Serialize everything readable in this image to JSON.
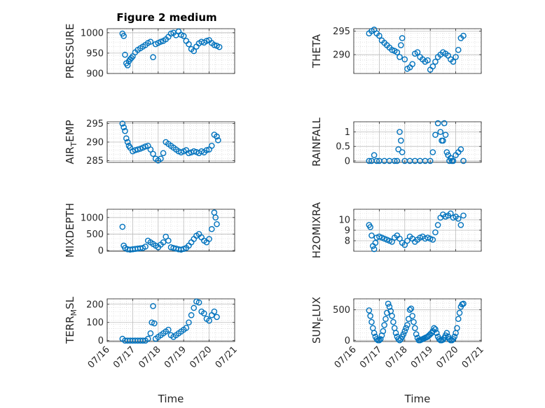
{
  "colors": {
    "marker": "#0072BD",
    "axis": "#262626",
    "grid": "#cfcfcf",
    "background": "#ffffff"
  },
  "chart_data": [
    {
      "type": "scatter",
      "title": "Figure 2 medium",
      "ylabel": "PRESSURE",
      "xlabel": "",
      "xticks": [
        "07/16",
        "07/17",
        "07/18",
        "07/19",
        "07/20",
        "07/21"
      ],
      "show_xticks": false,
      "ylim": [
        900,
        1010
      ],
      "yticks": [
        "900",
        "950",
        "1000"
      ],
      "ytick_values": [
        900,
        950,
        1000
      ],
      "grid": true,
      "x": [
        0.6,
        0.65,
        0.7,
        0.75,
        0.8,
        0.85,
        0.9,
        0.95,
        1.0,
        1.1,
        1.2,
        1.3,
        1.4,
        1.5,
        1.6,
        1.7,
        1.8,
        1.9,
        2.0,
        2.1,
        2.2,
        2.3,
        2.4,
        2.5,
        2.6,
        2.7,
        2.8,
        2.9,
        3.0,
        3.1,
        3.2,
        3.3,
        3.4,
        3.5,
        3.6,
        3.7,
        3.8,
        3.9,
        4.0,
        4.1,
        4.2,
        4.3,
        4.4
      ],
      "y": [
        998,
        992,
        946,
        925,
        920,
        930,
        935,
        938,
        942,
        952,
        958,
        962,
        966,
        970,
        975,
        978,
        940,
        972,
        975,
        978,
        980,
        984,
        990,
        998,
        1000,
        994,
        1003,
        995,
        992,
        980,
        972,
        960,
        955,
        966,
        974,
        978,
        976,
        980,
        982,
        975,
        970,
        968,
        965
      ]
    },
    {
      "type": "scatter",
      "ylabel": "THETA",
      "xlabel": "",
      "xticks": [
        "07/16",
        "07/17",
        "07/18",
        "07/19",
        "07/20",
        "07/21"
      ],
      "show_xticks": false,
      "ylim": [
        286,
        295.5
      ],
      "yticks": [
        "290",
        "295"
      ],
      "ytick_values": [
        290,
        295
      ],
      "grid": true,
      "x": [
        0.6,
        0.7,
        0.8,
        0.9,
        1.0,
        1.1,
        1.2,
        1.3,
        1.4,
        1.5,
        1.6,
        1.7,
        1.8,
        1.85,
        1.9,
        2.0,
        2.1,
        2.2,
        2.3,
        2.4,
        2.5,
        2.6,
        2.7,
        2.8,
        2.9,
        3.0,
        3.1,
        3.2,
        3.3,
        3.4,
        3.5,
        3.6,
        3.7,
        3.8,
        3.9,
        4.0,
        4.1,
        4.2,
        4.3
      ],
      "y": [
        294.5,
        295,
        295.3,
        294.5,
        294,
        293,
        292.5,
        292,
        291.5,
        291,
        290.8,
        290.5,
        289.5,
        292,
        293.5,
        289,
        287,
        287.3,
        288,
        290.2,
        290.5,
        289.5,
        289,
        288.5,
        288.8,
        286.8,
        287.5,
        288.5,
        289.5,
        290,
        290.5,
        290.2,
        289.8,
        289,
        288.5,
        289.5,
        291,
        293.5,
        294
      ]
    },
    {
      "type": "scatter",
      "ylabel": "AIR_TEMP",
      "xlabel": "",
      "xticks": [
        "07/16",
        "07/17",
        "07/18",
        "07/19",
        "07/20",
        "07/21"
      ],
      "show_xticks": false,
      "ylim": [
        284.5,
        295.5
      ],
      "yticks": [
        "285",
        "290",
        "295"
      ],
      "ytick_values": [
        285,
        290,
        295
      ],
      "grid": true,
      "x": [
        0.6,
        0.65,
        0.7,
        0.75,
        0.8,
        0.85,
        0.9,
        1.0,
        1.1,
        1.2,
        1.3,
        1.4,
        1.5,
        1.6,
        1.7,
        1.8,
        1.9,
        2.0,
        2.1,
        2.2,
        2.3,
        2.4,
        2.5,
        2.6,
        2.7,
        2.8,
        2.9,
        3.0,
        3.1,
        3.2,
        3.3,
        3.4,
        3.5,
        3.6,
        3.7,
        3.8,
        3.9,
        4.0,
        4.1,
        4.2,
        4.3,
        4.35
      ],
      "y": [
        295,
        294,
        293,
        291,
        290,
        289,
        288.5,
        287.5,
        287.8,
        288,
        288.2,
        288.5,
        288.8,
        289,
        288,
        286.8,
        285.5,
        285,
        285.5,
        287,
        290,
        289.5,
        289,
        288.5,
        288,
        287.5,
        287.2,
        287.5,
        287.8,
        287,
        287.2,
        287.5,
        287.3,
        287,
        287.5,
        287.2,
        287.8,
        288,
        289,
        292,
        291.5,
        290.5
      ]
    },
    {
      "type": "scatter",
      "ylabel": "RAINFALL",
      "xlabel": "",
      "xticks": [
        "07/16",
        "07/17",
        "07/18",
        "07/19",
        "07/20",
        "07/21"
      ],
      "show_xticks": false,
      "ylim": [
        -0.05,
        1.35
      ],
      "yticks": [
        "0",
        "0.5",
        "1"
      ],
      "ytick_values": [
        0,
        0.5,
        1
      ],
      "grid": true,
      "x": [
        0.6,
        0.7,
        0.8,
        0.9,
        1.0,
        1.2,
        1.4,
        1.6,
        1.7,
        1.75,
        1.8,
        1.85,
        1.9,
        2.0,
        2.2,
        2.4,
        2.6,
        2.8,
        3.0,
        3.1,
        3.2,
        3.3,
        3.4,
        3.45,
        3.5,
        3.55,
        3.6,
        3.65,
        3.7,
        3.75,
        3.8,
        3.85,
        3.9,
        4.0,
        4.1,
        4.2,
        4.3
      ],
      "y": [
        0,
        0,
        0.2,
        0,
        0,
        0,
        0,
        0,
        0,
        0.4,
        1.0,
        0.7,
        0.3,
        0,
        0,
        0,
        0,
        0,
        0,
        0.3,
        0.9,
        1.3,
        1.0,
        0.7,
        0.7,
        1.3,
        0.9,
        0.3,
        0.2,
        0,
        0.1,
        0,
        0,
        0.2,
        0.3,
        0.4,
        0
      ]
    },
    {
      "type": "scatter",
      "ylabel": "MIXDEPTH",
      "xlabel": "",
      "xticks": [
        "07/16",
        "07/17",
        "07/18",
        "07/19",
        "07/20",
        "07/21"
      ],
      "show_xticks": false,
      "ylim": [
        -20,
        1250
      ],
      "yticks": [
        "0",
        "500",
        "1000"
      ],
      "ytick_values": [
        0,
        500,
        1000
      ],
      "grid": true,
      "x": [
        0.6,
        0.65,
        0.7,
        0.8,
        0.9,
        1.0,
        1.1,
        1.2,
        1.3,
        1.4,
        1.5,
        1.6,
        1.7,
        1.8,
        1.9,
        2.0,
        2.1,
        2.2,
        2.3,
        2.4,
        2.5,
        2.6,
        2.7,
        2.8,
        2.9,
        3.0,
        3.1,
        3.2,
        3.3,
        3.4,
        3.5,
        3.6,
        3.7,
        3.8,
        3.9,
        4.0,
        4.1,
        4.2,
        4.25,
        4.3
      ],
      "y": [
        720,
        150,
        80,
        40,
        30,
        40,
        50,
        60,
        70,
        80,
        120,
        300,
        250,
        200,
        150,
        100,
        180,
        250,
        420,
        300,
        100,
        80,
        60,
        40,
        30,
        50,
        80,
        150,
        250,
        350,
        450,
        500,
        400,
        300,
        250,
        350,
        650,
        1150,
        1000,
        800
      ]
    },
    {
      "type": "scatter",
      "ylabel": "H2OMIXRA",
      "xlabel": "",
      "xticks": [
        "07/16",
        "07/17",
        "07/18",
        "07/19",
        "07/20",
        "07/21"
      ],
      "show_xticks": false,
      "ylim": [
        7,
        11
      ],
      "yticks": [
        "8",
        "9",
        "10"
      ],
      "ytick_values": [
        8,
        9,
        10
      ],
      "grid": true,
      "x": [
        0.6,
        0.65,
        0.7,
        0.75,
        0.8,
        0.85,
        0.9,
        1.0,
        1.1,
        1.2,
        1.3,
        1.4,
        1.5,
        1.6,
        1.7,
        1.8,
        1.9,
        2.0,
        2.1,
        2.2,
        2.3,
        2.4,
        2.5,
        2.6,
        2.7,
        2.8,
        2.9,
        3.0,
        3.1,
        3.2,
        3.3,
        3.4,
        3.5,
        3.6,
        3.7,
        3.8,
        3.9,
        4.0,
        4.1,
        4.2,
        4.3
      ],
      "y": [
        9.5,
        9.3,
        8.5,
        7.5,
        7.2,
        7.8,
        8.3,
        8.4,
        8.3,
        8.2,
        8.1,
        8.0,
        7.9,
        8.3,
        8.5,
        8.2,
        7.8,
        7.6,
        8.0,
        8.4,
        8.2,
        7.9,
        8.1,
        8.3,
        8.4,
        8.2,
        8.3,
        8.2,
        8.1,
        8.8,
        9.5,
        10.2,
        10.5,
        10.3,
        10.4,
        10.6,
        10.2,
        10.3,
        10.1,
        9.5,
        10.4
      ]
    },
    {
      "type": "scatter",
      "ylabel": "TERR_MSL",
      "xlabel": "Time",
      "xticks": [
        "07/16",
        "07/17",
        "07/18",
        "07/19",
        "07/20",
        "07/21"
      ],
      "show_xticks": true,
      "ylim": [
        -5,
        230
      ],
      "yticks": [
        "0",
        "100",
        "200"
      ],
      "ytick_values": [
        0,
        100,
        200
      ],
      "grid": true,
      "x": [
        0.6,
        0.7,
        0.8,
        0.9,
        1.0,
        1.1,
        1.2,
        1.3,
        1.4,
        1.5,
        1.6,
        1.7,
        1.75,
        1.8,
        1.85,
        1.9,
        2.0,
        2.1,
        2.2,
        2.3,
        2.4,
        2.5,
        2.6,
        2.7,
        2.8,
        2.9,
        3.0,
        3.1,
        3.2,
        3.3,
        3.4,
        3.5,
        3.6,
        3.7,
        3.8,
        3.9,
        4.0,
        4.1,
        4.2,
        4.3
      ],
      "y": [
        10,
        0,
        0,
        0,
        0,
        0,
        0,
        0,
        0,
        0,
        10,
        40,
        100,
        190,
        95,
        10,
        20,
        30,
        40,
        50,
        60,
        30,
        20,
        30,
        40,
        50,
        60,
        70,
        100,
        140,
        180,
        215,
        210,
        160,
        150,
        120,
        110,
        140,
        160,
        130
      ]
    },
    {
      "type": "scatter",
      "ylabel": "SUN_FLUX",
      "xlabel": "Time",
      "xticks": [
        "07/16",
        "07/17",
        "07/18",
        "07/19",
        "07/20",
        "07/21"
      ],
      "show_xticks": true,
      "ylim": [
        -20,
        680
      ],
      "yticks": [
        "0",
        "500"
      ],
      "ytick_values": [
        0,
        500
      ],
      "grid": true,
      "x": [
        0.6,
        0.65,
        0.7,
        0.75,
        0.8,
        0.85,
        0.9,
        0.95,
        1.0,
        1.05,
        1.1,
        1.15,
        1.2,
        1.25,
        1.3,
        1.35,
        1.4,
        1.45,
        1.5,
        1.55,
        1.6,
        1.65,
        1.7,
        1.75,
        1.8,
        1.85,
        1.9,
        1.95,
        2.0,
        2.05,
        2.1,
        2.15,
        2.2,
        2.25,
        2.3,
        2.35,
        2.4,
        2.45,
        2.5,
        2.55,
        2.6,
        2.65,
        2.7,
        2.75,
        2.8,
        2.85,
        2.9,
        2.95,
        3.0,
        3.05,
        3.1,
        3.15,
        3.2,
        3.25,
        3.3,
        3.35,
        3.4,
        3.45,
        3.5,
        3.55,
        3.6,
        3.65,
        3.7,
        3.75,
        3.8,
        3.85,
        3.9,
        3.95,
        4.0,
        4.05,
        4.1,
        4.15,
        4.2,
        4.25,
        4.3
      ],
      "y": [
        490,
        400,
        300,
        200,
        120,
        60,
        20,
        0,
        0,
        20,
        80,
        150,
        250,
        350,
        450,
        600,
        550,
        480,
        400,
        300,
        200,
        120,
        60,
        20,
        0,
        20,
        60,
        100,
        150,
        200,
        250,
        350,
        500,
        520,
        400,
        300,
        200,
        100,
        40,
        0,
        0,
        10,
        20,
        30,
        40,
        50,
        60,
        80,
        100,
        120,
        150,
        200,
        180,
        120,
        60,
        20,
        0,
        0,
        10,
        40,
        80,
        120,
        60,
        20,
        0,
        0,
        20,
        60,
        120,
        200,
        350,
        450,
        550,
        590,
        600
      ]
    }
  ]
}
